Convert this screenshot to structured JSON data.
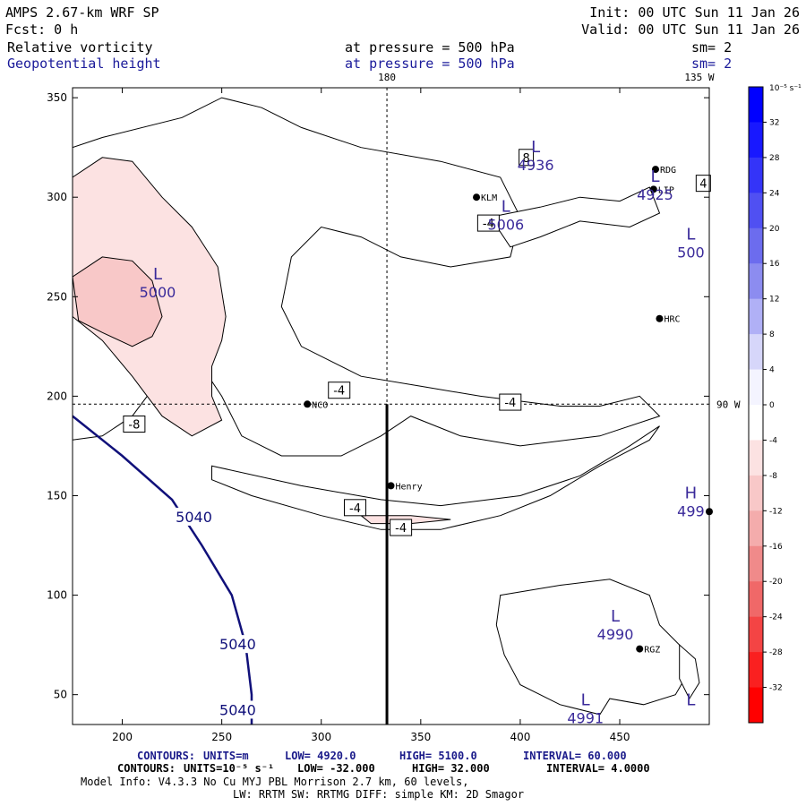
{
  "header": {
    "model": "AMPS 2.67-km WRF SP",
    "fcst": "Fcst:    0 h",
    "init": "Init: 00 UTC Sun 11 Jan 26",
    "valid": "Valid: 00 UTC Sun 11 Jan 26",
    "field1": {
      "name": "Relative vorticity",
      "pressure": "at pressure =  500 hPa",
      "sm": "sm= 2"
    },
    "field2": {
      "name": "Geopotential height",
      "pressure": "at pressure =  500 hPa",
      "sm": "sm= 2"
    }
  },
  "colors": {
    "height_line": "#10107a",
    "vort_line": "#000000",
    "lowhigh_text": "#3a2a9a",
    "footer_blue": "#1a1a8a"
  },
  "chart_data": {
    "type": "heatmap",
    "xlim": [
      175,
      495
    ],
    "ylim": [
      35,
      355
    ],
    "xticks": [
      200,
      250,
      300,
      350,
      400,
      450
    ],
    "yticks": [
      50,
      100,
      150,
      200,
      250,
      300,
      350
    ],
    "meridian_labels": [
      {
        "text": "180",
        "x": 333,
        "y": 355
      },
      {
        "text": "135 W",
        "x": 490,
        "y": 355
      },
      {
        "text": "90 W",
        "x": 495,
        "y": 196
      }
    ],
    "reference_lines": {
      "vertical_x": 333,
      "horizontal_y": 196
    },
    "colorbar": {
      "unit": "10⁻⁵ s⁻¹",
      "tick_labels": [
        "32",
        "28",
        "24",
        "20",
        "16",
        "12",
        "8",
        "4",
        "0",
        "-4",
        "-8",
        "-12",
        "-16",
        "-20",
        "-24",
        "-28",
        "-32"
      ],
      "colors": [
        "#0000ff",
        "#1818ff",
        "#3434f8",
        "#5050f2",
        "#6c6cee",
        "#8c8cf0",
        "#b0b0f6",
        "#d6d6fa",
        "#f4f4ff",
        "#ffffff",
        "#fce2e2",
        "#f8c8c8",
        "#f4acac",
        "#f08a8a",
        "#f06868",
        "#f44444",
        "#fa2020",
        "#ff0000"
      ]
    },
    "vorticity_regions": [
      {
        "level": -4,
        "points": [
          [
            175,
            325
          ],
          [
            190,
            330
          ],
          [
            230,
            340
          ],
          [
            250,
            350
          ],
          [
            270,
            345
          ],
          [
            290,
            335
          ],
          [
            320,
            325
          ],
          [
            360,
            318
          ],
          [
            390,
            310
          ],
          [
            400,
            290
          ],
          [
            395,
            270
          ],
          [
            365,
            265
          ],
          [
            340,
            270
          ],
          [
            320,
            280
          ],
          [
            300,
            285
          ],
          [
            285,
            270
          ],
          [
            280,
            245
          ],
          [
            290,
            225
          ],
          [
            320,
            210
          ],
          [
            350,
            205
          ],
          [
            380,
            200
          ],
          [
            420,
            195
          ],
          [
            440,
            195
          ],
          [
            460,
            200
          ],
          [
            470,
            190
          ],
          [
            440,
            180
          ],
          [
            400,
            175
          ],
          [
            370,
            180
          ],
          [
            345,
            190
          ],
          [
            330,
            180
          ],
          [
            310,
            170
          ],
          [
            280,
            170
          ],
          [
            260,
            180
          ],
          [
            250,
            200
          ],
          [
            240,
            215
          ],
          [
            230,
            225
          ],
          [
            220,
            210
          ],
          [
            205,
            190
          ],
          [
            190,
            180
          ],
          [
            175,
            178
          ]
        ]
      },
      {
        "level": -4,
        "points": [
          [
            245,
            165
          ],
          [
            290,
            155
          ],
          [
            330,
            148
          ],
          [
            360,
            145
          ],
          [
            400,
            150
          ],
          [
            430,
            160
          ],
          [
            455,
            175
          ],
          [
            470,
            185
          ],
          [
            465,
            178
          ],
          [
            440,
            165
          ],
          [
            415,
            150
          ],
          [
            390,
            140
          ],
          [
            360,
            133
          ],
          [
            330,
            133
          ],
          [
            300,
            140
          ],
          [
            265,
            150
          ],
          [
            245,
            158
          ]
        ]
      },
      {
        "level": -4,
        "points": [
          [
            385,
            290
          ],
          [
            410,
            295
          ],
          [
            430,
            300
          ],
          [
            450,
            298
          ],
          [
            465,
            305
          ],
          [
            470,
            292
          ],
          [
            455,
            285
          ],
          [
            430,
            288
          ],
          [
            410,
            280
          ],
          [
            395,
            275
          ]
        ]
      },
      {
        "level": -4,
        "points": [
          [
            390,
            100
          ],
          [
            420,
            105
          ],
          [
            445,
            108
          ],
          [
            465,
            100
          ],
          [
            470,
            85
          ],
          [
            480,
            75
          ],
          [
            485,
            62
          ],
          [
            478,
            50
          ],
          [
            462,
            45
          ],
          [
            445,
            48
          ],
          [
            440,
            40
          ],
          [
            420,
            45
          ],
          [
            400,
            55
          ],
          [
            392,
            70
          ],
          [
            388,
            85
          ]
        ]
      },
      {
        "level": -4,
        "points": [
          [
            480,
            75
          ],
          [
            488,
            68
          ],
          [
            490,
            56
          ],
          [
            485,
            48
          ],
          [
            480,
            58
          ]
        ]
      },
      {
        "level": -8,
        "points": [
          [
            175,
            310
          ],
          [
            190,
            320
          ],
          [
            205,
            318
          ],
          [
            220,
            300
          ],
          [
            235,
            285
          ],
          [
            248,
            265
          ],
          [
            252,
            240
          ],
          [
            250,
            228
          ],
          [
            245,
            215
          ],
          [
            245,
            200
          ],
          [
            250,
            188
          ],
          [
            235,
            180
          ],
          [
            220,
            190
          ],
          [
            205,
            210
          ],
          [
            190,
            228
          ],
          [
            175,
            240
          ]
        ]
      },
      {
        "level": -8,
        "points": [
          [
            320,
            140
          ],
          [
            345,
            140
          ],
          [
            365,
            138
          ],
          [
            345,
            136
          ],
          [
            325,
            136
          ]
        ]
      },
      {
        "level": -12,
        "points": [
          [
            175,
            260
          ],
          [
            190,
            270
          ],
          [
            205,
            268
          ],
          [
            215,
            258
          ],
          [
            220,
            240
          ],
          [
            215,
            230
          ],
          [
            205,
            225
          ],
          [
            190,
            232
          ],
          [
            178,
            238
          ]
        ]
      }
    ],
    "vorticity_labels": [
      {
        "text": "-4",
        "x": 309,
        "y": 203
      },
      {
        "text": "-4",
        "x": 395,
        "y": 197
      },
      {
        "text": "-4",
        "x": 384,
        "y": 287
      },
      {
        "text": "-4",
        "x": 317,
        "y": 144
      },
      {
        "text": "-4",
        "x": 340,
        "y": 134
      },
      {
        "text": "-8",
        "x": 206,
        "y": 186
      },
      {
        "text": "8",
        "x": 403,
        "y": 320
      },
      {
        "text": "4",
        "x": 492,
        "y": 307
      }
    ],
    "height_contours": [
      {
        "value": 5040,
        "points": [
          [
            175,
            190
          ],
          [
            200,
            170
          ],
          [
            225,
            148
          ],
          [
            240,
            125
          ],
          [
            255,
            100
          ],
          [
            262,
            75
          ],
          [
            265,
            50
          ],
          [
            265,
            35
          ]
        ]
      }
    ],
    "height_labels": [
      {
        "text": "5040",
        "x": 236,
        "y": 139
      },
      {
        "text": "5040",
        "x": 258,
        "y": 75
      },
      {
        "text": "5040",
        "x": 258,
        "y": 42
      }
    ],
    "extrema": [
      {
        "type": "L",
        "value": "5000",
        "x": 220,
        "y": 256
      },
      {
        "type": "L",
        "value": "5006",
        "x": 395,
        "y": 290
      },
      {
        "type": "L",
        "value": "4936",
        "x": 410,
        "y": 320
      },
      {
        "type": "L",
        "value": "4925",
        "x": 470,
        "y": 305
      },
      {
        "type": "L",
        "value": "500",
        "x": 488,
        "y": 276
      },
      {
        "type": "H",
        "value": "499",
        "x": 488,
        "y": 146
      },
      {
        "type": "L",
        "value": "4990",
        "x": 450,
        "y": 84
      },
      {
        "type": "L",
        "value": "4991",
        "x": 435,
        "y": 42
      },
      {
        "type": "L",
        "value": "",
        "x": 488,
        "y": 42
      }
    ],
    "stations": [
      {
        "name": "NCO",
        "x": 293,
        "y": 196
      },
      {
        "name": "Henry",
        "x": 335,
        "y": 155
      },
      {
        "name": "HRC",
        "x": 470,
        "y": 239
      },
      {
        "name": "RGZ",
        "x": 460,
        "y": 73
      },
      {
        "name": "KLM",
        "x": 378,
        "y": 300
      },
      {
        "name": "RDG",
        "x": 468,
        "y": 314
      },
      {
        "name": "LIP",
        "x": 467,
        "y": 304
      },
      {
        "name": "",
        "x": 495,
        "y": 142
      }
    ],
    "cross_section": {
      "x": 333,
      "y_from": 35,
      "y_to": 196
    }
  },
  "footer": {
    "line1": {
      "contours": "CONTOURS:",
      "units": "UNITS=m",
      "low": "LOW=  4920.0",
      "high": "HIGH=  5100.0",
      "interval": "INTERVAL=   60.000"
    },
    "line2": {
      "contours": "CONTOURS:",
      "units": "UNITS=10⁻⁵ s⁻¹",
      "low": "LOW= -32.000",
      "high": "HIGH=  32.000",
      "interval": "INTERVAL=   4.0000"
    },
    "line3": "Model Info: V4.3.3   No Cu   MYJ PBL  Morrison          2.7 km,  60 levels,",
    "line4": "LW: RRTM SW: RRTMG   DIFF: simple KM: 2D Smagor"
  }
}
